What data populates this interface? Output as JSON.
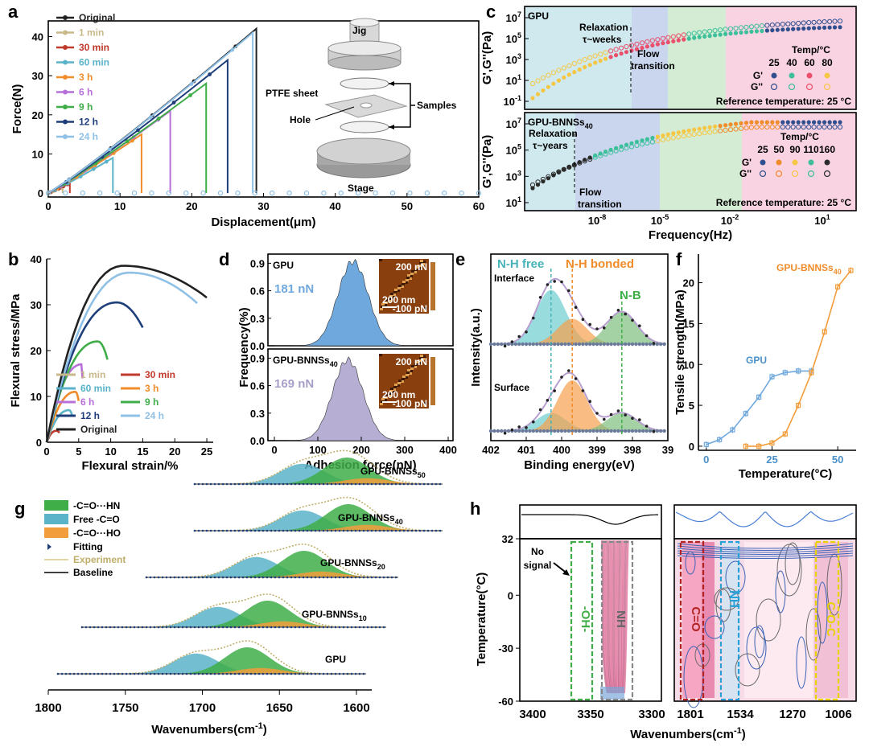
{
  "panels": {
    "a": {
      "label": "a"
    },
    "b": {
      "label": "b"
    },
    "c": {
      "label": "c"
    },
    "d": {
      "label": "d"
    },
    "e": {
      "label": "e"
    },
    "f": {
      "label": "f"
    },
    "g": {
      "label": "g"
    },
    "h": {
      "label": "h"
    }
  },
  "colors": {
    "Original": "#222222",
    "1 min": "#c9b88a",
    "30 min": "#c0392b",
    "60 min": "#5ab3c9",
    "3 h": "#f08c2a",
    "6 h": "#b76fd9",
    "9 h": "#3fae49",
    "12 h": "#1f3f7a",
    "24 h": "#8fc0e6",
    "gpu_blue": "#6fa8dc",
    "bnns_orange": "#f29d3b",
    "bnns_lilac": "#b6aed3"
  },
  "chart_data": [
    {
      "panel": "a",
      "type": "line",
      "xlabel": "Displacement(μm)",
      "ylabel": "Force(N)",
      "xlim": [
        0,
        60
      ],
      "ylim": [
        -1,
        44
      ],
      "xticks": [
        0,
        10,
        20,
        30,
        40,
        50,
        60
      ],
      "yticks": [
        0,
        10,
        20,
        30,
        40
      ],
      "legend": "top-left",
      "series": [
        {
          "name": "Original",
          "peak_x": 29,
          "peak_y": 42
        },
        {
          "name": "1 min",
          "peak_x": 2,
          "peak_y": 1.5
        },
        {
          "name": "30 min",
          "peak_x": 3,
          "peak_y": 2.5
        },
        {
          "name": "60 min",
          "peak_x": 9,
          "peak_y": 9
        },
        {
          "name": "3 h",
          "peak_x": 13,
          "peak_y": 15
        },
        {
          "name": "6 h",
          "peak_x": 17,
          "peak_y": 21
        },
        {
          "name": "9 h",
          "peak_x": 22,
          "peak_y": 28
        },
        {
          "name": "12 h",
          "peak_x": 25,
          "peak_y": 34
        },
        {
          "name": "24 h",
          "peak_x": 28.5,
          "peak_y": 41
        }
      ],
      "annotations": [
        "Jig",
        "PTFE sheet",
        "Hole",
        "Samples",
        "Stage"
      ]
    },
    {
      "panel": "b",
      "type": "line",
      "xlabel": "Flexural strain/%",
      "ylabel": "Flexural stress/MPa",
      "xlim": [
        0,
        26
      ],
      "ylim": [
        0,
        40
      ],
      "xticks": [
        0,
        5,
        10,
        15,
        20,
        25
      ],
      "yticks": [
        0,
        10,
        20,
        30,
        40
      ],
      "legend": "bottom-right",
      "series": [
        {
          "name": "1 min",
          "peak_x": 0.3,
          "peak_y": 0.8,
          "end_x": 0.4
        },
        {
          "name": "30 min",
          "peak_x": 1.5,
          "peak_y": 2.5,
          "end_x": 2
        },
        {
          "name": "60 min",
          "peak_x": 3.5,
          "peak_y": 7,
          "end_x": 4
        },
        {
          "name": "3 h",
          "peak_x": 4.5,
          "peak_y": 11,
          "end_x": 5
        },
        {
          "name": "6 h",
          "peak_x": 5.5,
          "peak_y": 17,
          "end_x": 5.6
        },
        {
          "name": "9 h",
          "peak_x": 8,
          "peak_y": 22,
          "end_x": 9.5
        },
        {
          "name": "12 h",
          "peak_x": 11,
          "peak_y": 30.5,
          "end_x": 15
        },
        {
          "name": "24 h",
          "peak_x": 13,
          "peak_y": 37,
          "end_x": 23.5
        },
        {
          "name": "Original",
          "peak_x": 12,
          "peak_y": 38.5,
          "end_x": 25
        }
      ]
    },
    {
      "panel": "c",
      "type": "scatter",
      "xlabel": "Frequency(Hz)",
      "ylabel": "G', G''(Pa)",
      "subplots": [
        {
          "title": "GPU",
          "ylabel": "G',G''(Pa)",
          "yticks": [
            "10-1",
            "101",
            "103",
            "105",
            "107"
          ],
          "annotations": [
            "Relaxation",
            "τ~weeks",
            "Flow",
            "transition",
            "Reference temperature: 25 °C"
          ],
          "legend_title": "Temp/°C",
          "temps": [
            25,
            40,
            60,
            80
          ],
          "legend_rows": [
            "G'",
            "G''"
          ]
        },
        {
          "title": "GPU-BNNSs40",
          "ylabel": "G',G''(Pa)",
          "yticks": [
            "101",
            "103",
            "105",
            "107"
          ],
          "annotations": [
            "Relaxation",
            "τ~years",
            "Flow",
            "transition",
            "Reference temperature: 25 °C"
          ],
          "legend_title": "Temp/°C",
          "temps": [
            25,
            50,
            90,
            110,
            160
          ],
          "legend_rows": [
            "G'",
            "G''"
          ]
        }
      ],
      "xticks": [
        "10-8",
        "10-5",
        "10-2",
        "101"
      ]
    },
    {
      "panel": "d",
      "type": "area",
      "xlabel": "Adhesion force(nN)",
      "ylabel": "Frequency(%)",
      "xlim": [
        0,
        400
      ],
      "xticks": [
        0,
        100,
        200,
        300,
        400
      ],
      "yticks": [
        0.0,
        0.3,
        0.6,
        0.9
      ],
      "subplots": [
        {
          "title": "GPU",
          "mean": "181 nN",
          "center": 181,
          "peak": 0.92,
          "sigma": 35
        },
        {
          "title": "GPU-BNNSs40",
          "mean": "169 nN",
          "center": 169,
          "peak": 0.88,
          "sigma": 35
        }
      ],
      "inset_labels": [
        "200 nN",
        "-100 pN",
        "200 nm"
      ]
    },
    {
      "panel": "e",
      "type": "line",
      "xlabel": "Binding energy(eV)",
      "ylabel": "Intensity(a.u.)",
      "xlim": [
        402,
        397
      ],
      "xticks": [
        "402",
        "401",
        "400",
        "399",
        "398",
        "39"
      ],
      "peak_labels": [
        "N-H free",
        "N-H bonded",
        "N-B"
      ],
      "subplots": [
        {
          "title": "Interface",
          "peaks": [
            {
              "center": 400.3,
              "height": 0.75
            },
            {
              "center": 399.7,
              "height": 0.35
            },
            {
              "center": 398.3,
              "height": 0.45
            }
          ]
        },
        {
          "title": "Surface",
          "peaks": [
            {
              "center": 400.3,
              "height": 0.25
            },
            {
              "center": 399.7,
              "height": 0.7
            },
            {
              "center": 398.3,
              "height": 0.25
            }
          ]
        }
      ]
    },
    {
      "panel": "f",
      "type": "scatter",
      "xlabel": "Temperature(°C)",
      "ylabel": "Tensile strength(MPa)",
      "xlim": [
        -3,
        57
      ],
      "ylim": [
        -0.5,
        23.5
      ],
      "xticks": [
        0,
        25,
        50
      ],
      "yticks": [
        0,
        5,
        10,
        15,
        20
      ],
      "series": [
        {
          "name": "GPU",
          "x": [
            0,
            5,
            10,
            15,
            20,
            25,
            30,
            35,
            40
          ],
          "y": [
            0.2,
            0.8,
            2,
            4,
            6,
            8.5,
            9,
            9.2,
            9.2
          ]
        },
        {
          "name": "GPU-BNNSs40",
          "x": [
            15,
            20,
            25,
            30,
            35,
            40,
            45,
            50,
            55
          ],
          "y": [
            0,
            0,
            0.4,
            1.5,
            5,
            9,
            14,
            19.5,
            21.5
          ]
        }
      ]
    },
    {
      "panel": "g",
      "type": "area",
      "xlabel": "Wavenumbers(cm-1)",
      "xlim": [
        1800,
        1600
      ],
      "xticks": [
        1800,
        1750,
        1700,
        1650,
        1600
      ],
      "legend": [
        "-C=O···HN",
        "Free -C=O",
        "-C=O···HO",
        "Fitting",
        "Experiment",
        "Baseline"
      ],
      "series": [
        {
          "name": "GPU-BNNSs50"
        },
        {
          "name": "GPU-BNNSs40"
        },
        {
          "name": "GPU-BNNSs20"
        },
        {
          "name": "GPU-BNNSs10"
        },
        {
          "name": "GPU"
        }
      ]
    },
    {
      "panel": "h",
      "type": "heatmap",
      "xlabel": "Wavenumbers(cm-1)",
      "ylabel": "Temperature(°C)",
      "ylim": [
        -60,
        32
      ],
      "yticks": [
        32,
        0,
        -30,
        -60
      ],
      "xticks_left": [
        3400,
        3350,
        3300
      ],
      "xticks_right": [
        1801,
        1534,
        1270,
        1006
      ],
      "annotations": [
        "No",
        "signal",
        "-OH-",
        "NH",
        "C=O",
        "NH",
        "C-O-C"
      ]
    }
  ]
}
